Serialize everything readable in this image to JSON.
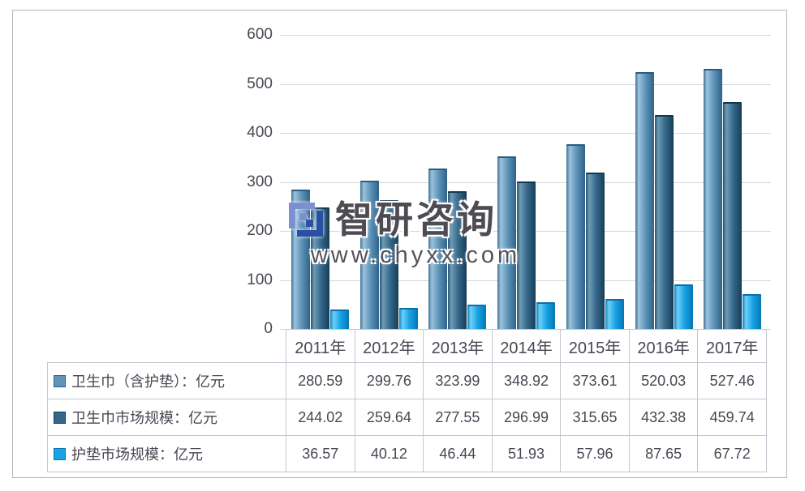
{
  "chart_data": {
    "type": "bar",
    "title": "",
    "categories": [
      "2011年",
      "2012年",
      "2013年",
      "2014年",
      "2015年",
      "2016年",
      "2017年"
    ],
    "series": [
      {
        "name": "卫生巾（含护垫）：亿元",
        "values": [
          280.59,
          299.76,
          323.99,
          348.92,
          373.61,
          520.03,
          527.46
        ],
        "marker_color": "#6293B8",
        "marker_border": "#2F6288",
        "gradient": [
          "#3F7095",
          "#9CC3DC",
          "#5D93B8",
          "#2F6288"
        ],
        "cap_color": "#2A5B7E"
      },
      {
        "name": "卫生巾市场规模：亿元",
        "values": [
          244.02,
          259.64,
          277.55,
          296.99,
          315.65,
          432.38,
          459.74
        ],
        "marker_color": "#35678A",
        "marker_border": "#173D56",
        "gradient": [
          "#2A5573",
          "#6E9BB4",
          "#35688C",
          "#173D56"
        ],
        "cap_color": "#14374E"
      },
      {
        "name": "护垫市场规模：亿元",
        "values": [
          36.57,
          40.12,
          46.44,
          51.93,
          57.96,
          87.65,
          67.72
        ],
        "marker_color": "#18A3E5",
        "marker_border": "#0776B4",
        "gradient": [
          "#0C7EBE",
          "#6FD0F7",
          "#17A2E4",
          "#0776B4"
        ],
        "cap_color": "#0B6FA8"
      }
    ],
    "ylim": [
      0,
      600
    ],
    "yticks": [
      0,
      100,
      200,
      300,
      400,
      500,
      600
    ],
    "grid": true,
    "legend_position": "table-left",
    "value_decimals": 2
  },
  "watermark": {
    "brand": "智研咨询",
    "url": "www.chyxx.com",
    "logo_light": "#7B8FD2",
    "logo_dark": "#2B4FA3"
  },
  "colors": {
    "text": "#4B4552",
    "grid": "#D7D7DB",
    "table_border": "#C3C7CF",
    "frame_border": "#B3B7BF",
    "background": "#FFFFFF"
  }
}
